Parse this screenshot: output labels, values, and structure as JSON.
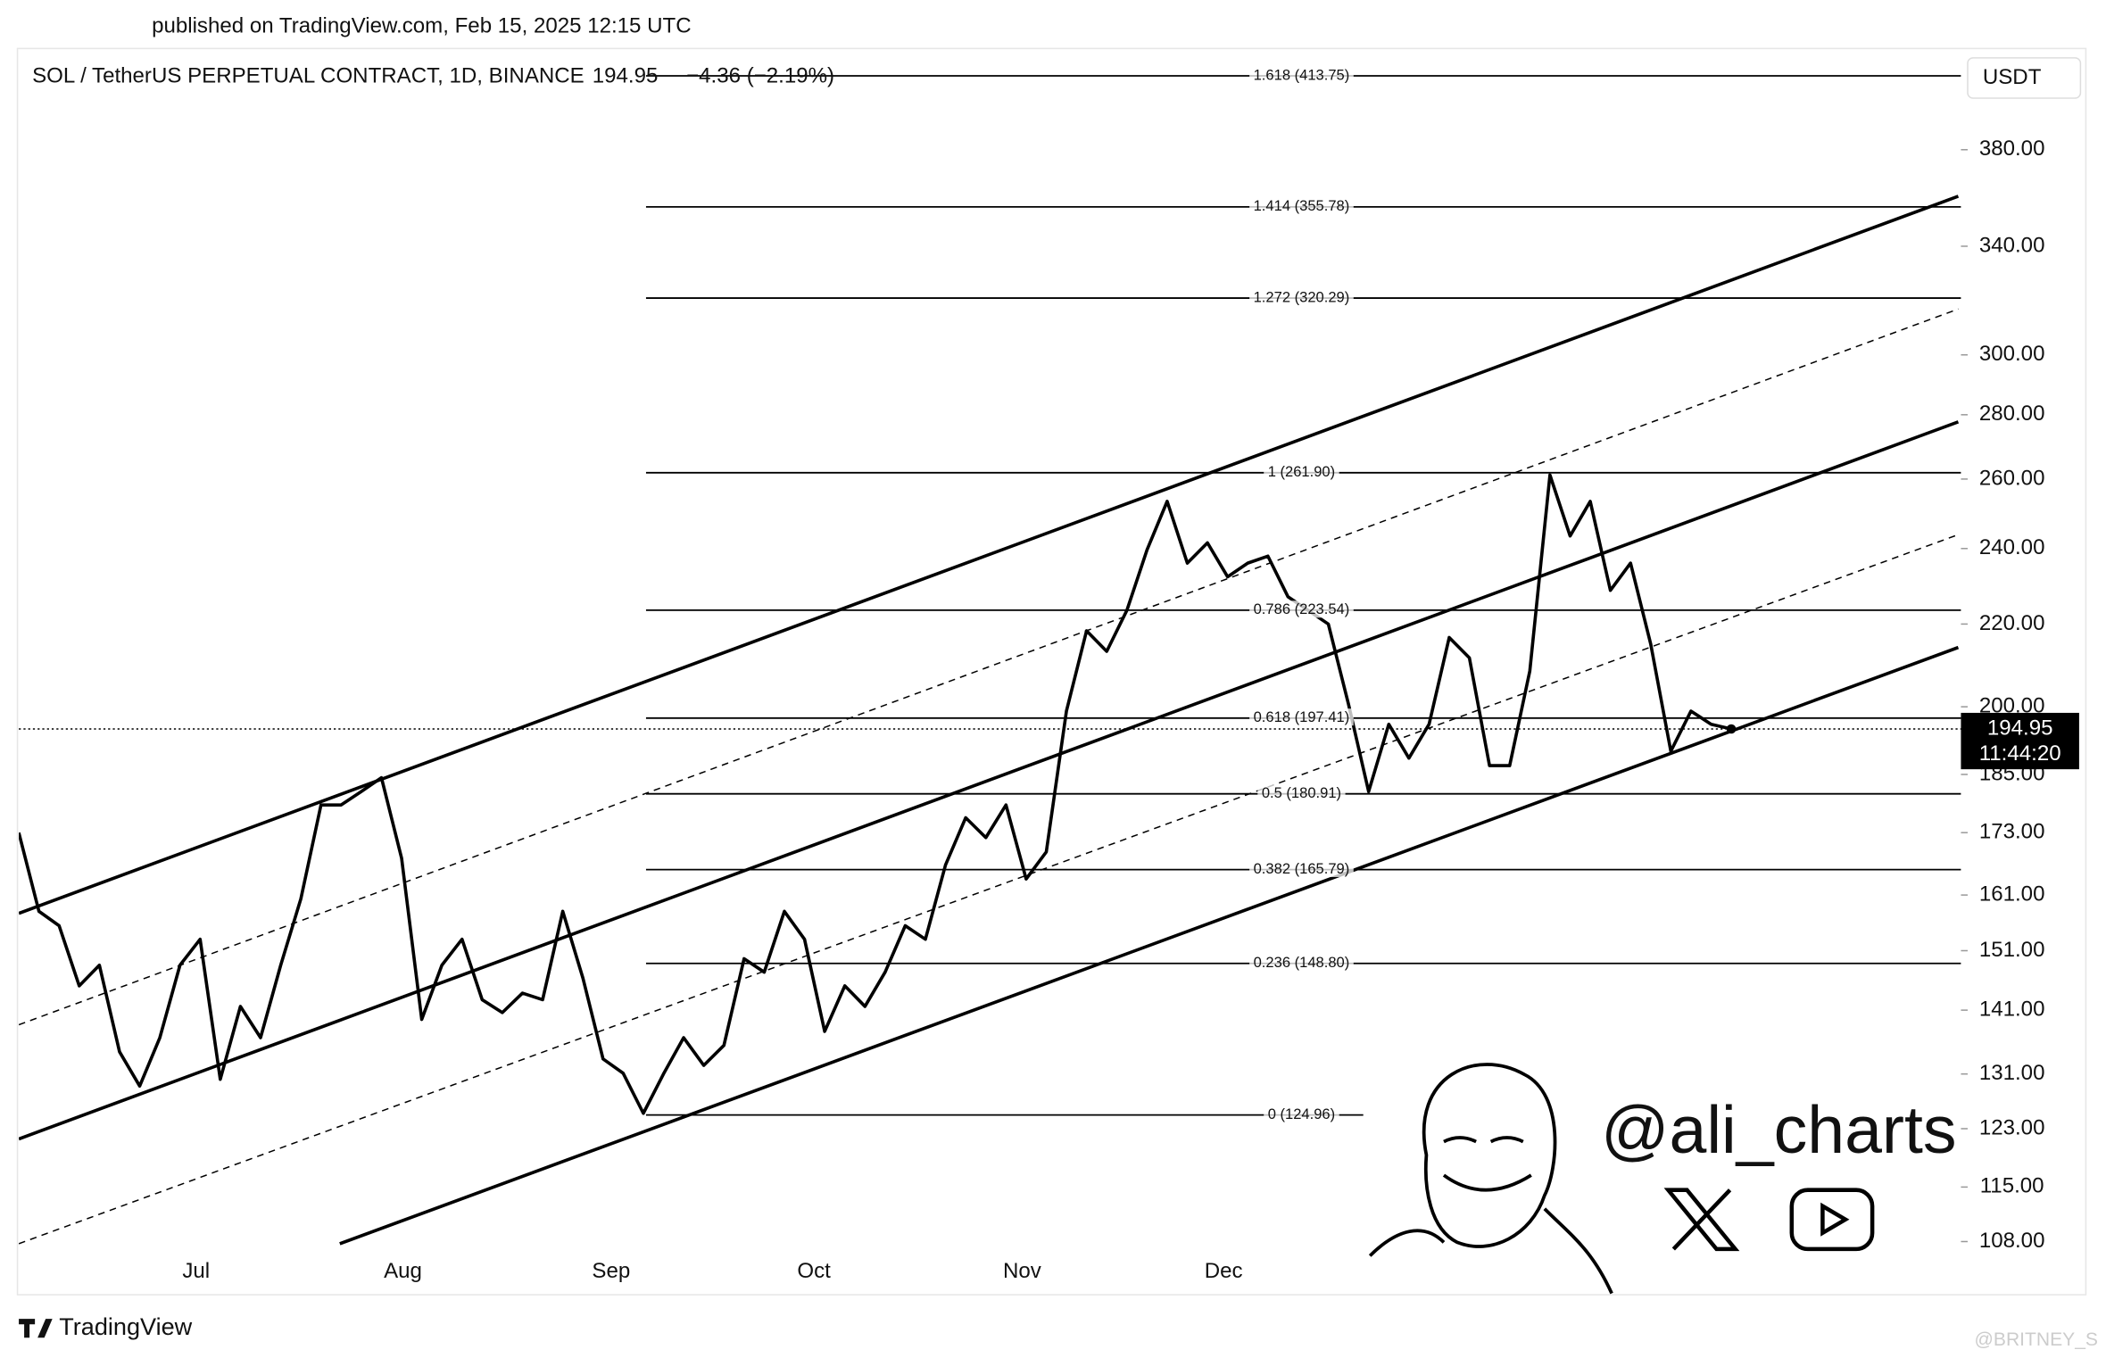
{
  "header": {
    "published": "published on TradingView.com, Feb 15, 2025 12:15 UTC",
    "brand": "TradingView",
    "watermark": "@BRITNEY_S",
    "handle": "@ali_charts"
  },
  "chart_data": {
    "type": "line",
    "log": true,
    "symbol": "SOL / TetherUS PERPETUAL CONTRACT, 1D, BINANCE",
    "last_text": "194.95",
    "change": "−4.36 (−2.19%)",
    "currency": "USDT",
    "last_price": 194.95,
    "countdown": "11:44:20",
    "x_labels": [
      "Jul",
      "Aug",
      "Sep",
      "Oct",
      "Nov",
      "Dec"
    ],
    "series": [
      {
        "name": "SOL",
        "color": "#000000",
        "values": [
          173,
          158,
          155.4,
          145,
          148.5,
          134.4,
          129.2,
          136.6,
          148.5,
          153,
          130.2,
          141.6,
          136.6,
          148.5,
          160.3,
          178.6,
          178.6,
          181.4,
          184.3,
          168,
          139.5,
          148.5,
          153,
          142.7,
          140.6,
          143.8,
          142.7,
          158,
          146.3,
          133.3,
          131.1,
          125.2,
          131,
          136.6,
          132.3,
          135.4,
          149.6,
          147.3,
          158,
          153,
          137.6,
          145,
          141.6,
          147.3,
          155.4,
          153,
          166.7,
          176,
          172,
          178.6,
          164,
          169.2,
          199,
          218.3,
          213.2,
          223.5,
          239.6,
          253.4,
          236,
          241.6,
          232.3,
          236,
          237.9,
          227,
          223.5,
          220,
          200.6,
          181.4,
          196,
          188.5,
          196,
          216.6,
          211.6,
          186.9,
          186.9,
          208.4,
          261.2,
          243.5,
          253.4,
          228.7,
          236,
          215,
          190,
          199,
          196,
          194.95
        ]
      }
    ],
    "fib_levels": [
      {
        "value": 413.75,
        "label": "1.618 (413.75)"
      },
      {
        "value": 355.78,
        "label": "1.414 (355.78)"
      },
      {
        "value": 320.29,
        "label": "1.272 (320.29)"
      },
      {
        "value": 261.9,
        "label": "1 (261.90)"
      },
      {
        "value": 223.54,
        "label": "0.786 (223.54)"
      },
      {
        "value": 197.41,
        "label": "0.618 (197.41)"
      },
      {
        "value": 180.91,
        "label": "0.5 (180.91)"
      },
      {
        "value": 165.79,
        "label": "0.382 (165.79)"
      },
      {
        "value": 148.8,
        "label": "0.236 (148.80)"
      },
      {
        "value": 124.96,
        "label": "0 (124.96)"
      }
    ],
    "ylim": [
      107.4,
      427
    ],
    "yticks": [
      {
        "value": 380,
        "label": "380.00"
      },
      {
        "value": 340,
        "label": "340.00"
      },
      {
        "value": 300,
        "label": "300.00"
      },
      {
        "value": 280,
        "label": "280.00"
      },
      {
        "value": 260,
        "label": "260.00"
      },
      {
        "value": 240,
        "label": "240.00"
      },
      {
        "value": 220,
        "label": "220.00"
      },
      {
        "value": 200,
        "label": "200.00"
      },
      {
        "value": 185,
        "label": "185.00"
      },
      {
        "value": 173,
        "label": "173.00"
      },
      {
        "value": 161,
        "label": "161.00"
      },
      {
        "value": 151,
        "label": "151.00"
      },
      {
        "value": 141,
        "label": "141.00"
      },
      {
        "value": 131,
        "label": "131.00"
      },
      {
        "value": 123,
        "label": "123.00"
      },
      {
        "value": 115,
        "label": "115.00"
      },
      {
        "value": 108,
        "label": "108.00"
      }
    ]
  }
}
